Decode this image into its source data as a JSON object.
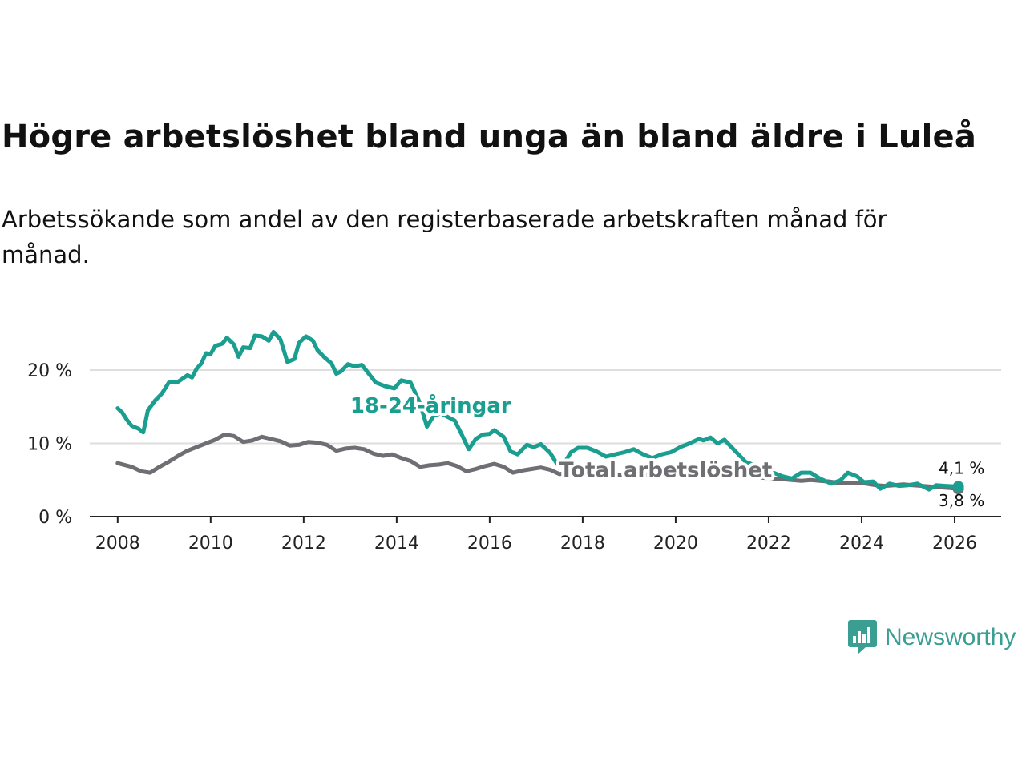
{
  "title": "Högre arbetslöshet bland unga än bland äldre i Luleå",
  "subtitle": "Arbetssökande som andel av den registerbaserade arbetskraften månad för månad.",
  "brand": {
    "name": "Newsworthy",
    "color": "#3a9e92",
    "icon": "newsworthy-logo-icon"
  },
  "chart_data": {
    "type": "line",
    "xlim": [
      2007.4,
      2027.0
    ],
    "ylim": [
      0,
      26
    ],
    "x_ticks": [
      2008,
      2010,
      2012,
      2014,
      2016,
      2018,
      2020,
      2022,
      2024,
      2026
    ],
    "x_tick_labels": [
      "2008",
      "2010",
      "2012",
      "2014",
      "2016",
      "2018",
      "2020",
      "2022",
      "2024",
      "2026"
    ],
    "y_ticks": [
      0,
      10,
      20
    ],
    "y_tick_labels": [
      "0 %",
      "10 %",
      "20 %"
    ],
    "grid": true,
    "series": [
      {
        "name": "Total arbetslöshet",
        "label": "Total arbetslöshet",
        "color": "#6e6e73",
        "end_label": "3,8 %",
        "points": [
          [
            2008.0,
            7.3
          ],
          [
            2008.3,
            6.8
          ],
          [
            2008.5,
            6.2
          ],
          [
            2008.7,
            6.0
          ],
          [
            2008.9,
            6.8
          ],
          [
            2009.1,
            7.5
          ],
          [
            2009.3,
            8.3
          ],
          [
            2009.5,
            9.0
          ],
          [
            2009.7,
            9.5
          ],
          [
            2009.9,
            10.0
          ],
          [
            2010.1,
            10.5
          ],
          [
            2010.3,
            11.2
          ],
          [
            2010.5,
            11.0
          ],
          [
            2010.7,
            10.2
          ],
          [
            2010.9,
            10.4
          ],
          [
            2011.1,
            10.9
          ],
          [
            2011.3,
            10.6
          ],
          [
            2011.5,
            10.3
          ],
          [
            2011.7,
            9.7
          ],
          [
            2011.9,
            9.8
          ],
          [
            2012.1,
            10.2
          ],
          [
            2012.3,
            10.1
          ],
          [
            2012.5,
            9.8
          ],
          [
            2012.7,
            9.0
          ],
          [
            2012.9,
            9.3
          ],
          [
            2013.1,
            9.4
          ],
          [
            2013.3,
            9.2
          ],
          [
            2013.5,
            8.6
          ],
          [
            2013.7,
            8.3
          ],
          [
            2013.9,
            8.5
          ],
          [
            2014.1,
            8.0
          ],
          [
            2014.3,
            7.6
          ],
          [
            2014.5,
            6.8
          ],
          [
            2014.7,
            7.0
          ],
          [
            2014.9,
            7.1
          ],
          [
            2015.1,
            7.3
          ],
          [
            2015.3,
            6.9
          ],
          [
            2015.5,
            6.2
          ],
          [
            2015.7,
            6.5
          ],
          [
            2015.9,
            6.9
          ],
          [
            2016.1,
            7.2
          ],
          [
            2016.3,
            6.8
          ],
          [
            2016.5,
            6.0
          ],
          [
            2016.7,
            6.3
          ],
          [
            2016.9,
            6.5
          ],
          [
            2017.1,
            6.7
          ],
          [
            2017.3,
            6.4
          ],
          [
            2017.5,
            5.8
          ],
          [
            2017.7,
            6.0
          ],
          [
            2017.9,
            6.1
          ],
          [
            2018.1,
            5.9
          ],
          [
            2018.3,
            5.7
          ],
          [
            2018.5,
            5.5
          ],
          [
            2018.7,
            5.6
          ],
          [
            2018.9,
            5.8
          ],
          [
            2019.1,
            5.9
          ],
          [
            2019.3,
            5.7
          ],
          [
            2019.5,
            5.5
          ],
          [
            2019.7,
            5.6
          ],
          [
            2019.9,
            5.8
          ],
          [
            2020.1,
            6.2
          ],
          [
            2020.3,
            6.5
          ],
          [
            2020.5,
            6.6
          ],
          [
            2020.7,
            6.5
          ],
          [
            2020.9,
            6.3
          ],
          [
            2021.1,
            6.1
          ],
          [
            2021.3,
            5.8
          ],
          [
            2021.5,
            5.5
          ],
          [
            2021.7,
            5.4
          ],
          [
            2021.9,
            5.3
          ],
          [
            2022.1,
            5.2
          ],
          [
            2022.3,
            5.1
          ],
          [
            2022.5,
            5.0
          ],
          [
            2022.7,
            4.9
          ],
          [
            2022.9,
            5.0
          ],
          [
            2023.1,
            4.9
          ],
          [
            2023.3,
            4.8
          ],
          [
            2023.5,
            4.6
          ],
          [
            2023.7,
            4.6
          ],
          [
            2023.9,
            4.6
          ],
          [
            2024.1,
            4.5
          ],
          [
            2024.3,
            4.3
          ],
          [
            2024.5,
            4.2
          ],
          [
            2024.7,
            4.3
          ],
          [
            2024.9,
            4.4
          ],
          [
            2025.1,
            4.3
          ],
          [
            2025.3,
            4.2
          ],
          [
            2025.5,
            4.1
          ],
          [
            2025.7,
            4.0
          ],
          [
            2025.9,
            3.9
          ],
          [
            2026.08,
            3.8
          ]
        ]
      },
      {
        "name": "18-24-åringar",
        "label": "18-24-åringar",
        "color": "#1a9e90",
        "end_label": "4,1 %",
        "points": [
          [
            2008.0,
            14.8
          ],
          [
            2008.1,
            14.2
          ],
          [
            2008.2,
            13.2
          ],
          [
            2008.3,
            12.4
          ],
          [
            2008.45,
            12.0
          ],
          [
            2008.55,
            11.5
          ],
          [
            2008.65,
            14.5
          ],
          [
            2008.8,
            15.8
          ],
          [
            2008.95,
            16.8
          ],
          [
            2009.1,
            18.3
          ],
          [
            2009.3,
            18.4
          ],
          [
            2009.5,
            19.3
          ],
          [
            2009.6,
            19.0
          ],
          [
            2009.7,
            20.2
          ],
          [
            2009.8,
            20.9
          ],
          [
            2009.9,
            22.3
          ],
          [
            2010.0,
            22.2
          ],
          [
            2010.1,
            23.3
          ],
          [
            2010.25,
            23.6
          ],
          [
            2010.35,
            24.4
          ],
          [
            2010.5,
            23.5
          ],
          [
            2010.6,
            21.8
          ],
          [
            2010.7,
            23.1
          ],
          [
            2010.85,
            23.0
          ],
          [
            2010.95,
            24.7
          ],
          [
            2011.1,
            24.6
          ],
          [
            2011.25,
            24.0
          ],
          [
            2011.35,
            25.2
          ],
          [
            2011.5,
            24.2
          ],
          [
            2011.65,
            21.1
          ],
          [
            2011.8,
            21.5
          ],
          [
            2011.9,
            23.7
          ],
          [
            2012.05,
            24.6
          ],
          [
            2012.2,
            24.0
          ],
          [
            2012.3,
            22.7
          ],
          [
            2012.45,
            21.7
          ],
          [
            2012.6,
            20.9
          ],
          [
            2012.7,
            19.5
          ],
          [
            2012.8,
            19.8
          ],
          [
            2012.95,
            20.8
          ],
          [
            2013.1,
            20.5
          ],
          [
            2013.25,
            20.7
          ],
          [
            2013.4,
            19.5
          ],
          [
            2013.55,
            18.3
          ],
          [
            2013.75,
            17.8
          ],
          [
            2013.95,
            17.5
          ],
          [
            2014.1,
            18.6
          ],
          [
            2014.3,
            18.3
          ],
          [
            2014.5,
            15.5
          ],
          [
            2014.65,
            12.3
          ],
          [
            2014.8,
            13.8
          ],
          [
            2014.95,
            14.1
          ],
          [
            2015.1,
            13.6
          ],
          [
            2015.25,
            13.1
          ],
          [
            2015.4,
            11.2
          ],
          [
            2015.55,
            9.2
          ],
          [
            2015.7,
            10.6
          ],
          [
            2015.85,
            11.2
          ],
          [
            2016.0,
            11.3
          ],
          [
            2016.1,
            11.8
          ],
          [
            2016.3,
            10.9
          ],
          [
            2016.45,
            8.9
          ],
          [
            2016.6,
            8.5
          ],
          [
            2016.8,
            9.8
          ],
          [
            2016.95,
            9.5
          ],
          [
            2017.1,
            9.9
          ],
          [
            2017.3,
            8.7
          ],
          [
            2017.45,
            7.2
          ],
          [
            2017.6,
            7.3
          ],
          [
            2017.75,
            8.8
          ],
          [
            2017.9,
            9.4
          ],
          [
            2018.1,
            9.4
          ],
          [
            2018.3,
            8.9
          ],
          [
            2018.5,
            8.2
          ],
          [
            2018.7,
            8.5
          ],
          [
            2018.9,
            8.8
          ],
          [
            2019.1,
            9.2
          ],
          [
            2019.3,
            8.5
          ],
          [
            2019.5,
            8.0
          ],
          [
            2019.7,
            8.5
          ],
          [
            2019.9,
            8.8
          ],
          [
            2020.1,
            9.5
          ],
          [
            2020.3,
            10.0
          ],
          [
            2020.5,
            10.6
          ],
          [
            2020.6,
            10.4
          ],
          [
            2020.75,
            10.8
          ],
          [
            2020.9,
            10.0
          ],
          [
            2021.05,
            10.5
          ],
          [
            2021.2,
            9.5
          ],
          [
            2021.35,
            8.5
          ],
          [
            2021.5,
            7.5
          ],
          [
            2021.7,
            7.0
          ],
          [
            2021.9,
            6.5
          ],
          [
            2022.1,
            6.0
          ],
          [
            2022.3,
            5.5
          ],
          [
            2022.5,
            5.2
          ],
          [
            2022.7,
            6.0
          ],
          [
            2022.9,
            6.0
          ],
          [
            2023.1,
            5.2
          ],
          [
            2023.35,
            4.5
          ],
          [
            2023.55,
            5.0
          ],
          [
            2023.7,
            6.0
          ],
          [
            2023.9,
            5.5
          ],
          [
            2024.05,
            4.7
          ],
          [
            2024.25,
            4.8
          ],
          [
            2024.4,
            3.8
          ],
          [
            2024.6,
            4.5
          ],
          [
            2024.8,
            4.2
          ],
          [
            2025.0,
            4.3
          ],
          [
            2025.2,
            4.5
          ],
          [
            2025.45,
            3.7
          ],
          [
            2025.6,
            4.3
          ],
          [
            2025.8,
            4.2
          ],
          [
            2026.08,
            4.1
          ]
        ]
      }
    ]
  }
}
